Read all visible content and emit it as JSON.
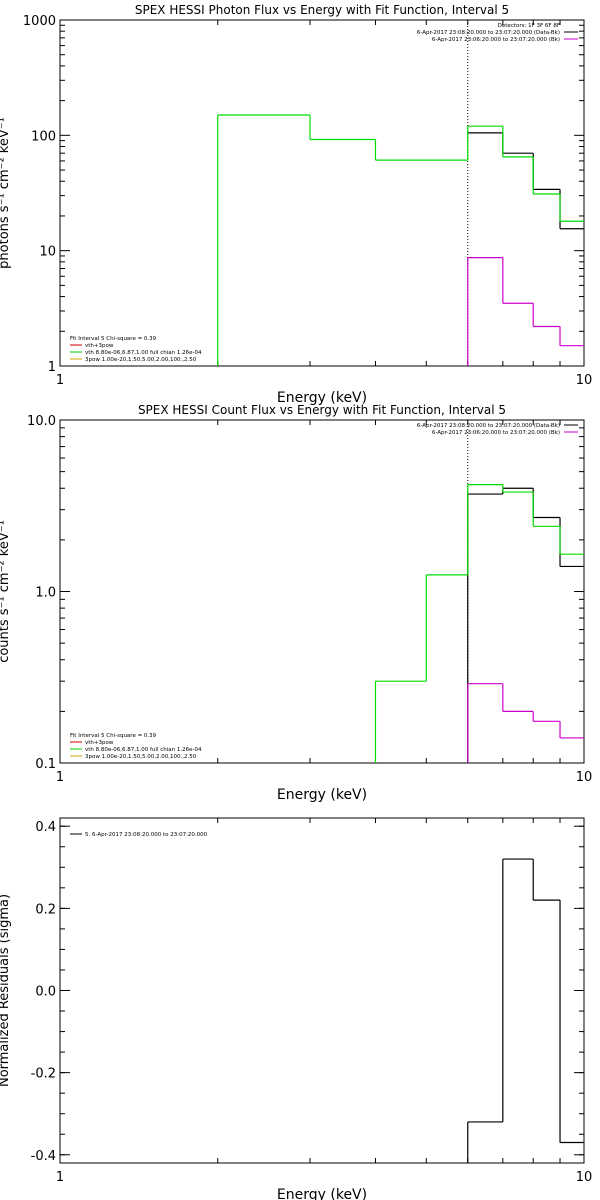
{
  "chart_data": [
    {
      "type": "line",
      "title": "SPEX HESSI Photon Flux vs Energy with Fit Function, Interval 5",
      "xlabel": "Energy (keV)",
      "ylabel": "photons s⁻¹ cm⁻² keV⁻¹",
      "xscale": "log",
      "yscale": "log",
      "xlim": [
        1,
        10
      ],
      "ylim": [
        1,
        1000
      ],
      "xticks": [
        {
          "v": 1,
          "label": "1"
        },
        {
          "v": 10,
          "label": "10"
        }
      ],
      "yticks": [
        {
          "v": 1,
          "label": "1"
        },
        {
          "v": 10,
          "label": "10"
        },
        {
          "v": 100,
          "label": "100"
        },
        {
          "v": 1000,
          "label": "1000"
        }
      ],
      "vline": 6.0,
      "legend_right": [
        {
          "text": "Detectors: 1F 3F 6F 8F",
          "color": ""
        },
        {
          "text": "6-Apr-2017 23:08:20.000 to 23:07:20.000 (Data-Bk)",
          "color": "#000000"
        },
        {
          "text": "6-Apr-2017 23:06:20.000 to 23:07:20.000 (Bk)",
          "color": "#cc00cc"
        }
      ],
      "legend_left": [
        {
          "text": "Fit Interval 5   Chi-square = 0.39",
          "color": ""
        },
        {
          "text": "vth+3pow",
          "color": "#cc0000"
        },
        {
          "text": "vth 8.80e-06,6.87,1.00  full chian 1.26e-04",
          "color": "#00cc00"
        },
        {
          "text": "3pow 1.00e-20,1.50,5.00,2.00,100.,2.50",
          "color": "#ccaa00"
        }
      ],
      "series": [
        {
          "color": "#000000",
          "bins": [
            [
              6,
              7,
              105
            ],
            [
              7,
              8,
              70
            ],
            [
              8,
              9,
              34
            ],
            [
              9,
              10,
              15.5
            ]
          ]
        },
        {
          "color": "#00dd00",
          "bins": [
            [
              2,
              2,
              1
            ],
            [
              2,
              3,
              150
            ],
            [
              3,
              4,
              92
            ],
            [
              4,
              6,
              61
            ],
            [
              6,
              7,
              120
            ],
            [
              7,
              8,
              65
            ],
            [
              8,
              9,
              31
            ],
            [
              9,
              10,
              18
            ]
          ]
        },
        {
          "color": "#cc00cc",
          "bins": [
            [
              6,
              6,
              1
            ],
            [
              6,
              7,
              8.7
            ],
            [
              7,
              8,
              3.5
            ],
            [
              8,
              9,
              2.2
            ],
            [
              9,
              10,
              1.5
            ]
          ]
        }
      ]
    },
    {
      "type": "line",
      "title": "SPEX HESSI Count Flux vs Energy with Fit Function, Interval 5",
      "xlabel": "Energy (keV)",
      "ylabel": "counts s⁻¹ cm⁻² keV⁻¹",
      "xscale": "log",
      "yscale": "log",
      "xlim": [
        1,
        10
      ],
      "ylim": [
        0.1,
        10
      ],
      "xticks": [
        {
          "v": 1,
          "label": "1"
        },
        {
          "v": 10,
          "label": "10"
        }
      ],
      "yticks": [
        {
          "v": 0.1,
          "label": "0.1"
        },
        {
          "v": 1,
          "label": "1.0"
        },
        {
          "v": 10,
          "label": "10.0"
        }
      ],
      "vline": 6.0,
      "legend_right": [
        {
          "text": "6-Apr-2017 23:08:20.000 to 23:07:20.000 (Data-Bk)",
          "color": "#000000"
        },
        {
          "text": "6-Apr-2017 23:06:20.000 to 23:07:20.000 (Bk)",
          "color": "#cc00cc"
        }
      ],
      "legend_left": [
        {
          "text": "Fit Interval 5   Chi-square = 0.39",
          "color": ""
        },
        {
          "text": "vth+3pow",
          "color": "#cc0000"
        },
        {
          "text": "vth 8.80e-06,6.87,1.00  full chian 1.26e-04",
          "color": "#00cc00"
        },
        {
          "text": "3pow 1.00e-20,1.50,5.00,2.00,100.,2.50",
          "color": "#ccaa00"
        }
      ],
      "series": [
        {
          "color": "#000000",
          "bins": [
            [
              6,
              6,
              0.1
            ],
            [
              6,
              7,
              3.7
            ],
            [
              7,
              8,
              4.0
            ],
            [
              8,
              9,
              2.7
            ],
            [
              9,
              10,
              1.4
            ]
          ]
        },
        {
          "color": "#00dd00",
          "bins": [
            [
              4,
              4,
              0.1
            ],
            [
              4,
              5,
              0.3
            ],
            [
              5,
              6,
              1.25
            ],
            [
              6,
              7,
              4.2
            ],
            [
              7,
              8,
              3.8
            ],
            [
              8,
              9,
              2.4
            ],
            [
              9,
              10,
              1.65
            ]
          ]
        },
        {
          "color": "#cc00cc",
          "bins": [
            [
              6,
              6,
              0.1
            ],
            [
              6,
              7,
              0.29
            ],
            [
              7,
              8,
              0.2
            ],
            [
              8,
              9,
              0.175
            ],
            [
              9,
              10,
              0.14
            ]
          ]
        }
      ]
    },
    {
      "type": "line",
      "title": "",
      "xlabel": "Energy (keV)",
      "ylabel": "Normalized Residuals (sigma)",
      "xscale": "log",
      "yscale": "linear",
      "xlim": [
        1,
        10
      ],
      "ylim": [
        -0.42,
        0.42
      ],
      "xticks": [
        {
          "v": 1,
          "label": "1"
        },
        {
          "v": 10,
          "label": "10"
        }
      ],
      "yticks": [
        {
          "v": -0.4,
          "label": "-0.4"
        },
        {
          "v": -0.2,
          "label": "-0.2"
        },
        {
          "v": 0,
          "label": "0.0"
        },
        {
          "v": 0.2,
          "label": "0.2"
        },
        {
          "v": 0.4,
          "label": "0.4"
        }
      ],
      "legend_top_left": [
        {
          "text": "5.  6-Apr-2017 23:08:20.000 to 23:07:20.000",
          "color": "#000000"
        }
      ],
      "series": [
        {
          "color": "#000000",
          "bins": [
            [
              6,
              6,
              -0.42
            ],
            [
              6,
              7,
              -0.32
            ],
            [
              7,
              8,
              0.32
            ],
            [
              8,
              9,
              0.22
            ],
            [
              9,
              10,
              -0.37
            ]
          ]
        }
      ]
    }
  ]
}
